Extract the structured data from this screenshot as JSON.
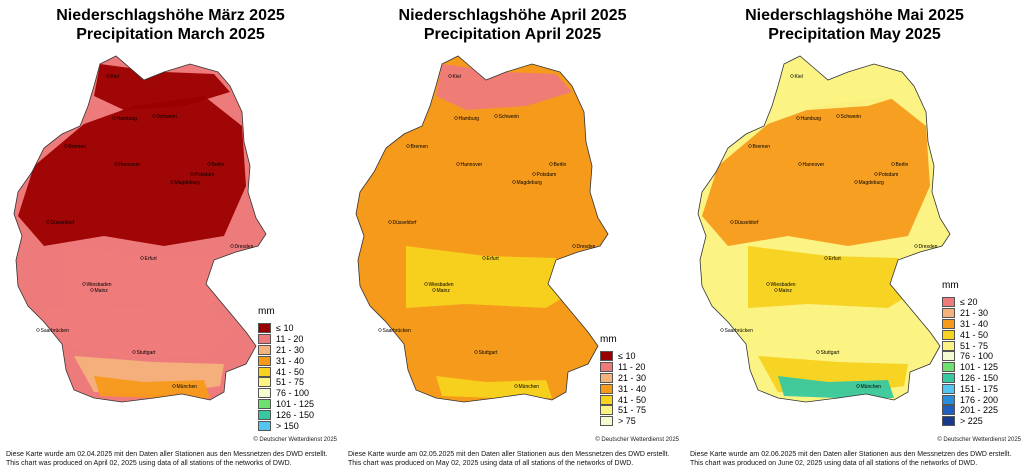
{
  "panels": [
    {
      "title_de": "Niederschlagshöhe März 2025",
      "title_en": "Precipitation March 2025",
      "unit": "mm",
      "legend": [
        {
          "label": "≤ 10",
          "color": "#9b0000"
        },
        {
          "label": "11 - 20",
          "color": "#ee7b7b"
        },
        {
          "label": "21 - 30",
          "color": "#f4b27c"
        },
        {
          "label": "31 - 40",
          "color": "#f59a1b"
        },
        {
          "label": "41 - 50",
          "color": "#f7d21e"
        },
        {
          "label": "51 - 75",
          "color": "#fbf383"
        },
        {
          "label": "76 - 100",
          "color": "#f4fbd0"
        },
        {
          "label": "101 - 125",
          "color": "#6fe06f"
        },
        {
          "label": "126 - 150",
          "color": "#37c8a0"
        },
        {
          "label": "> 150",
          "color": "#54c5ee"
        }
      ],
      "copyright": "© Deutscher Wetterdienst 2025",
      "footer_de": "Diese Karte wurde am 02.04.2025 mit den Daten aller Stationen aus den Messnetzen des DWD erstellt.",
      "footer_en": "This chart was produced on April 02, 2025 using data of all stations of the networks of DWD."
    },
    {
      "title_de": "Niederschlagshöhe April 2025",
      "title_en": "Precipitation April 2025",
      "unit": "mm",
      "legend": [
        {
          "label": "≤ 10",
          "color": "#9b0000"
        },
        {
          "label": "11 - 20",
          "color": "#ee7b7b"
        },
        {
          "label": "21 - 30",
          "color": "#f4b27c"
        },
        {
          "label": "31 - 40",
          "color": "#f59a1b"
        },
        {
          "label": "41 - 50",
          "color": "#f7d21e"
        },
        {
          "label": "51 - 75",
          "color": "#fbf383"
        },
        {
          "label": "> 75",
          "color": "#f4fbd0"
        }
      ],
      "copyright": "© Deutscher Wetterdienst 2025",
      "footer_de": "Diese Karte wurde am 02.05.2025 mit den Daten aller Stationen aus den Messnetzen des DWD erstellt.",
      "footer_en": "This chart was produced on May 02, 2025 using data of all stations of the networks of DWD."
    },
    {
      "title_de": "Niederschlagshöhe Mai 2025",
      "title_en": "Precipitation May 2025",
      "unit": "mm",
      "legend": [
        {
          "label": "≤ 20",
          "color": "#ee7b7b"
        },
        {
          "label": "21 - 30",
          "color": "#f4b27c"
        },
        {
          "label": "31 - 40",
          "color": "#f59a1b"
        },
        {
          "label": "41 - 50",
          "color": "#f7d21e"
        },
        {
          "label": "51 - 75",
          "color": "#fbf383"
        },
        {
          "label": "76 - 100",
          "color": "#f4fbd0"
        },
        {
          "label": "101 - 125",
          "color": "#6fe06f"
        },
        {
          "label": "126 - 150",
          "color": "#37c8a0"
        },
        {
          "label": "151 - 175",
          "color": "#54c5ee"
        },
        {
          "label": "176 - 200",
          "color": "#2a8fdb"
        },
        {
          "label": "201 - 225",
          "color": "#1f5fc0"
        },
        {
          "label": "> 225",
          "color": "#173a8a"
        }
      ],
      "copyright": "© Deutscher Wetterdienst 2025",
      "footer_de": "Diese Karte wurde am 02.06.2025 mit den Daten aller Stationen aus den Messnetzen des DWD erstellt.",
      "footer_en": "This chart was produced on June 02, 2025 using data of all stations of the networks of DWD."
    }
  ],
  "cities": [
    "Kiel",
    "Hamburg",
    "Schwerin",
    "Bremen",
    "Berlin",
    "Hannover",
    "Magdeburg",
    "Potsdam",
    "Düsseldorf",
    "Erfurt",
    "Dresden",
    "Wiesbaden",
    "Mainz",
    "Saarbrücken",
    "Stuttgart",
    "München"
  ]
}
